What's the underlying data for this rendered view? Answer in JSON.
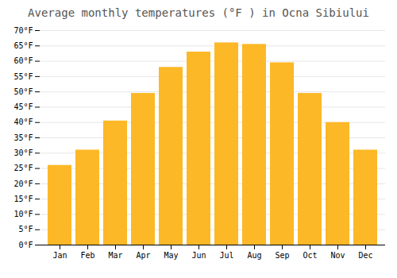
{
  "chart_data": {
    "type": "bar",
    "title": "Average monthly temperatures (°F ) in Ocna Sibiului",
    "categories": [
      "Jan",
      "Feb",
      "Mar",
      "Apr",
      "May",
      "Jun",
      "Jul",
      "Aug",
      "Sep",
      "Oct",
      "Nov",
      "Dec"
    ],
    "values": [
      26,
      31,
      40.5,
      49.5,
      58,
      63,
      66,
      65.5,
      59.5,
      49.5,
      40,
      31
    ],
    "color": "#FDB827",
    "ylim": [
      0,
      70
    ],
    "yticks": [
      {
        "value": 0,
        "label": "0°F"
      },
      {
        "value": 5,
        "label": "5°F"
      },
      {
        "value": 10,
        "label": "10°F"
      },
      {
        "value": 15,
        "label": "15°F"
      },
      {
        "value": 20,
        "label": "20°F"
      },
      {
        "value": 25,
        "label": "25°F"
      },
      {
        "value": 30,
        "label": "30°F"
      },
      {
        "value": 35,
        "label": "35°F"
      },
      {
        "value": 40,
        "label": "40°F"
      },
      {
        "value": 45,
        "label": "45°F"
      },
      {
        "value": 50,
        "label": "50°F"
      },
      {
        "value": 55,
        "label": "55°F"
      },
      {
        "value": 60,
        "label": "60°F"
      },
      {
        "value": 65,
        "label": "65°F"
      },
      {
        "value": 70,
        "label": "70°F"
      }
    ],
    "grid": true
  }
}
